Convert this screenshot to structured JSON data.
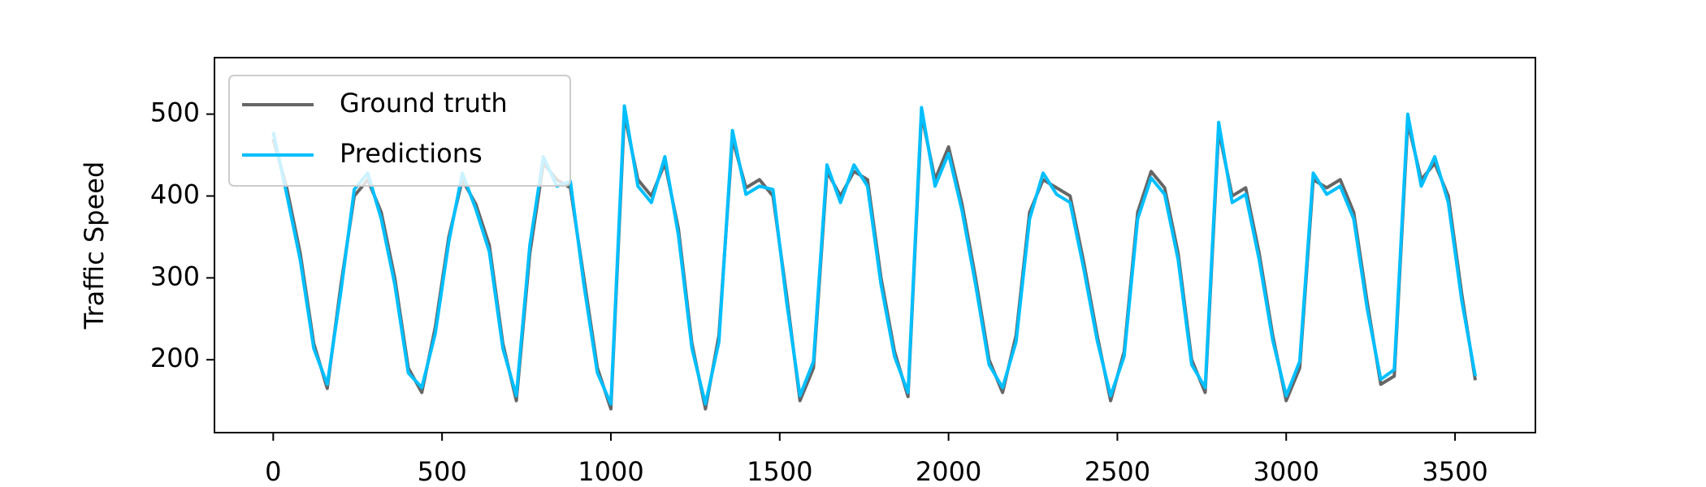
{
  "chart_data": {
    "type": "line",
    "ylabel": "Traffic Speed",
    "x": [
      0,
      40,
      80,
      120,
      160,
      200,
      240,
      280,
      320,
      360,
      400,
      440,
      480,
      520,
      560,
      600,
      640,
      680,
      720,
      760,
      800,
      840,
      880,
      920,
      960,
      1000,
      1040,
      1080,
      1120,
      1160,
      1200,
      1240,
      1280,
      1320,
      1360,
      1400,
      1440,
      1480,
      1520,
      1560,
      1600,
      1640,
      1680,
      1720,
      1760,
      1800,
      1840,
      1880,
      1920,
      1960,
      2000,
      2040,
      2080,
      2120,
      2160,
      2200,
      2240,
      2280,
      2320,
      2360,
      2400,
      2440,
      2480,
      2520,
      2560,
      2600,
      2640,
      2680,
      2720,
      2760,
      2800,
      2840,
      2880,
      2920,
      2960,
      3000,
      3040,
      3080,
      3120,
      3160,
      3200,
      3240,
      3280,
      3320,
      3360,
      3400,
      3440,
      3480,
      3520,
      3560
    ],
    "series": [
      {
        "name": "Ground truth",
        "color": "#666666",
        "values": [
          470,
          410,
          330,
          220,
          165,
          290,
          400,
          420,
          380,
          300,
          190,
          160,
          240,
          350,
          420,
          390,
          340,
          220,
          150,
          330,
          440,
          420,
          410,
          300,
          190,
          140,
          500,
          420,
          400,
          440,
          360,
          220,
          140,
          230,
          470,
          410,
          420,
          400,
          280,
          150,
          190,
          430,
          400,
          430,
          420,
          300,
          210,
          155,
          500,
          420,
          460,
          390,
          300,
          200,
          160,
          230,
          380,
          420,
          410,
          400,
          320,
          230,
          150,
          210,
          380,
          430,
          410,
          330,
          200,
          160,
          480,
          400,
          410,
          330,
          230,
          150,
          190,
          420,
          410,
          420,
          380,
          270,
          170,
          180,
          490,
          420,
          440,
          400,
          280,
          175
        ]
      },
      {
        "name": "Predictions",
        "color": "#00bfff",
        "values": [
          478,
          402,
          322,
          214,
          170,
          282,
          408,
          428,
          372,
          292,
          184,
          166,
          232,
          344,
          428,
          384,
          332,
          214,
          156,
          340,
          448,
          412,
          418,
          292,
          184,
          146,
          510,
          412,
          392,
          448,
          352,
          214,
          146,
          222,
          480,
          402,
          412,
          408,
          272,
          156,
          198,
          438,
          392,
          438,
          412,
          292,
          204,
          160,
          508,
          412,
          452,
          382,
          292,
          194,
          166,
          222,
          372,
          428,
          402,
          392,
          312,
          224,
          156,
          204,
          372,
          422,
          402,
          322,
          194,
          166,
          490,
          392,
          402,
          322,
          224,
          156,
          198,
          428,
          402,
          412,
          372,
          262,
          176,
          188,
          500,
          412,
          448,
          392,
          272,
          180
        ]
      }
    ],
    "xlim": [
      -174,
      3738
    ],
    "ylim": [
      111,
      569
    ],
    "xticks": [
      0,
      500,
      1000,
      1500,
      2000,
      2500,
      3000,
      3500
    ],
    "yticks": [
      200,
      300,
      400,
      500
    ],
    "legend": "upper left"
  }
}
